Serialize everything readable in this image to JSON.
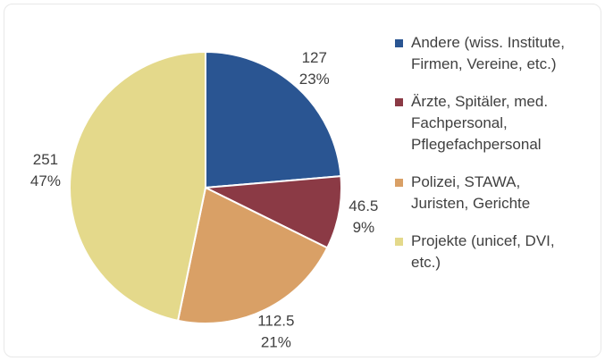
{
  "chart_data": {
    "type": "pie",
    "categories": [
      "Andere (wiss. Institute, Firmen, Vereine, etc.)",
      "Ärzte, Spitäler, med. Fachpersonal, Pflegefachpersonal",
      "Polizei, STAWA, Juristen, Gerichte",
      "Projekte (unicef, DVI, etc.)"
    ],
    "values": [
      127,
      46.5,
      112.5,
      251
    ],
    "percent_labels": [
      "23%",
      "9%",
      "21%",
      "47%"
    ],
    "colors": [
      "#2a5592",
      "#8b3a45",
      "#d9a066",
      "#e4d98b"
    ],
    "legend": "right"
  }
}
